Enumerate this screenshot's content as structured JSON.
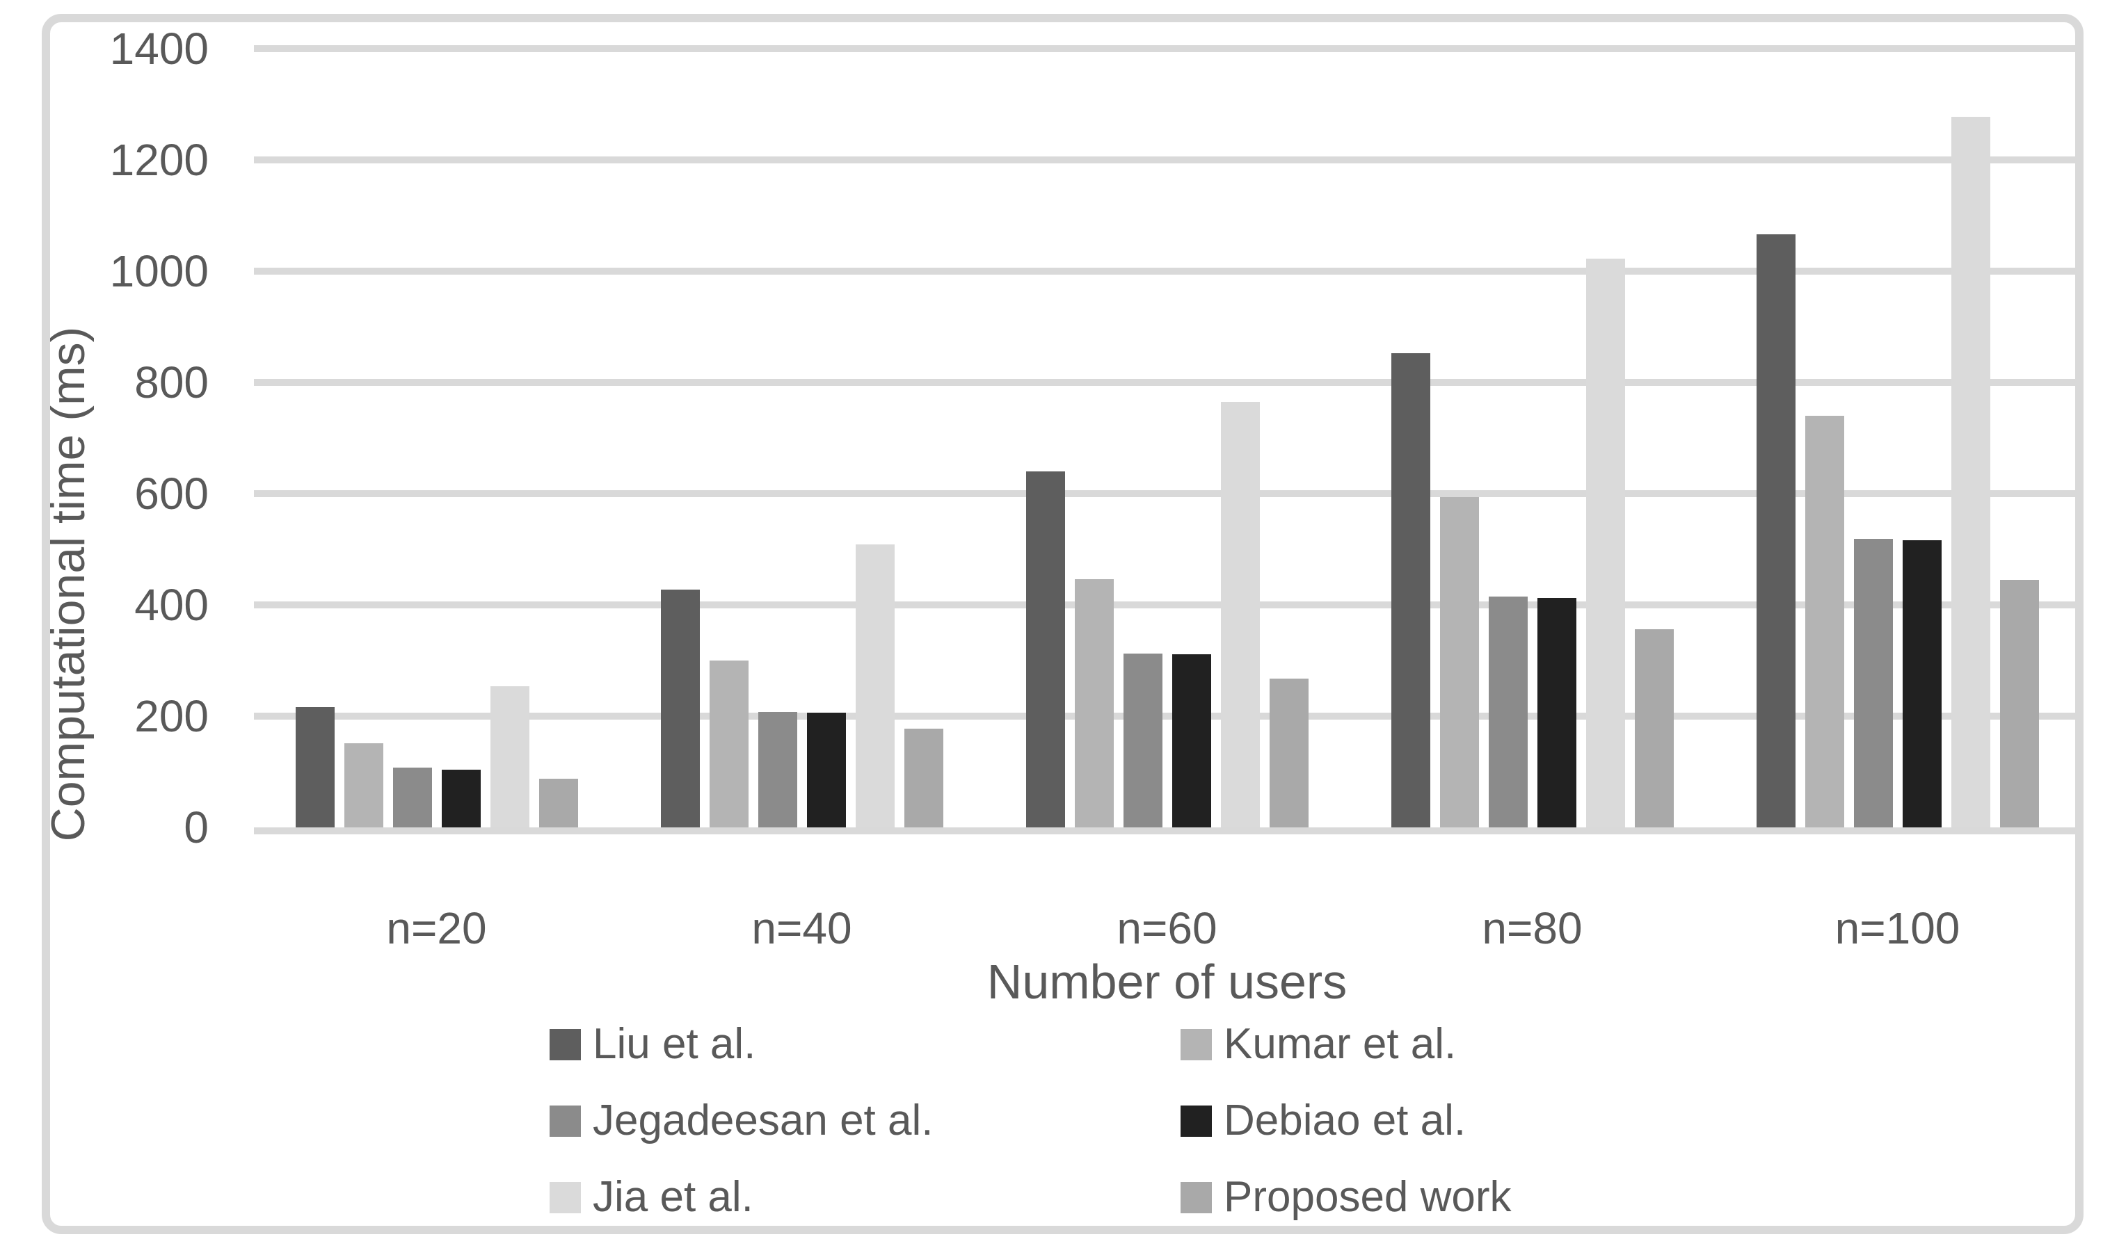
{
  "chart_data": {
    "type": "bar",
    "title": "",
    "xlabel": "Number of users",
    "ylabel": "Computational time (ms)",
    "categories": [
      "n=20",
      "n=40",
      "n=60",
      "n=80",
      "n=100"
    ],
    "series": [
      {
        "name": "Liu et al.",
        "color": "#5e5e5e",
        "values": [
          216,
          428,
          640,
          853,
          1066
        ]
      },
      {
        "name": "Kumar et al.",
        "color": "#b4b4b4",
        "values": [
          151,
          300,
          446,
          594,
          740
        ]
      },
      {
        "name": "Jegadeesan et al.",
        "color": "#8b8b8b",
        "values": [
          107,
          208,
          313,
          415,
          519
        ]
      },
      {
        "name": "Debiao et al.",
        "color": "#212121",
        "values": [
          104,
          206,
          311,
          413,
          516
        ]
      },
      {
        "name": "Jia et al.",
        "color": "#dadada",
        "values": [
          254,
          509,
          765,
          1022,
          1278
        ]
      },
      {
        "name": "Proposed work",
        "color": "#a9a9a9",
        "values": [
          88,
          178,
          267,
          356,
          445
        ]
      }
    ],
    "ylim": [
      0,
      1400
    ],
    "ytick_interval": 200,
    "yticks": [
      "0",
      "200",
      "400",
      "600",
      "800",
      "1000",
      "1200",
      "1400"
    ],
    "grid": true,
    "legend_position": "bottom-two-columns",
    "legend_order": [
      [
        "Liu et al.",
        "Kumar et al."
      ],
      [
        "Jegadeesan et al.",
        "Debiao et al."
      ],
      [
        "Jia et al.",
        "Proposed work"
      ]
    ]
  },
  "colors": {
    "grid": "#d9d9d9",
    "border": "#d9d9d9",
    "text": "#595959",
    "background": "#ffffff"
  }
}
